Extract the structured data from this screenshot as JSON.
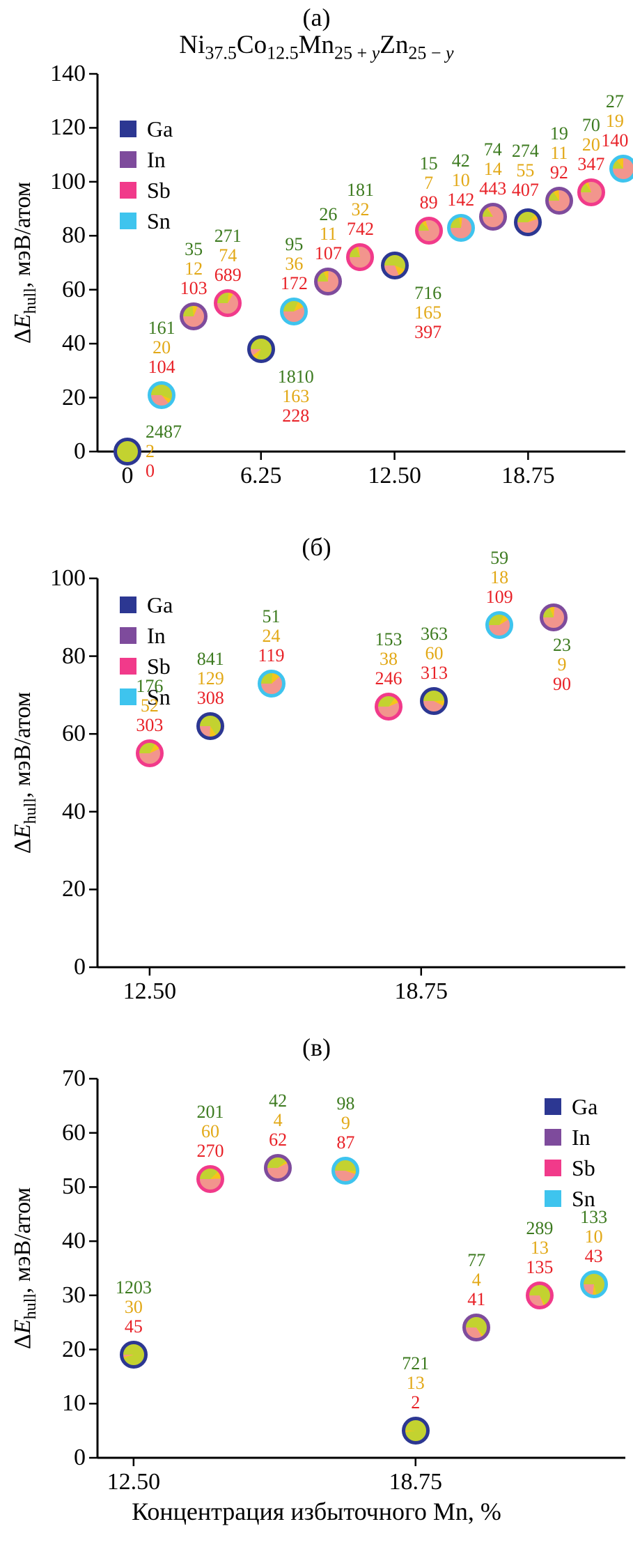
{
  "figure": {
    "xlabel": "Концентрация избыточного Mn, %",
    "ylabel": {
      "prefix": "Δ",
      "variable": "E",
      "subscript": "hull",
      "suffix": ", мэВ/атом"
    },
    "legend_entries": [
      "Ga",
      "In",
      "Sb",
      "Sn"
    ],
    "element_colors": {
      "Ga": "#2c3792",
      "In": "#7e4b9c",
      "Sb": "#f13a8a",
      "Sn": "#3ec4ee"
    },
    "pie_colors": {
      "green": "#c3d230",
      "yellow": "#f5c51b",
      "red": "#f2958d"
    },
    "annotation_colors": {
      "green": "#3c7a1f",
      "yellow": "#e2a816",
      "red": "#e82127"
    }
  },
  "chart_data": [
    {
      "type": "scatter-pie",
      "panel_label": "(а)",
      "title": "Ni37.5Co12.5Mn25+yZn25−y",
      "title_parts": [
        {
          "text": "Ni",
          "sub": "37.5"
        },
        {
          "text": "Co",
          "sub": "12.5"
        },
        {
          "text": "Mn",
          "sub": "25 + y"
        },
        {
          "text": "Zn",
          "sub": "25 − y"
        }
      ],
      "ylim": [
        0,
        140
      ],
      "yticks": [
        0,
        20,
        40,
        60,
        80,
        100,
        120,
        140
      ],
      "xlim": [
        -1.4,
        23.3
      ],
      "xticks": [
        0,
        6.25,
        12.5,
        18.75
      ],
      "xtick_labels": [
        "0",
        "6.25",
        "12.50",
        "18.75"
      ],
      "legend_pos": "top-left",
      "points": [
        {
          "x": 0,
          "y": 0,
          "element": "Ga",
          "green": 2487,
          "yellow": 2,
          "red": 0,
          "label_pos": "right"
        },
        {
          "x": 1.6,
          "y": 21,
          "element": "Sn",
          "green": 161,
          "yellow": 20,
          "red": 104,
          "label_pos": "above"
        },
        {
          "x": 3.1,
          "y": 50,
          "element": "In",
          "green": 35,
          "yellow": 12,
          "red": 103,
          "label_pos": "above"
        },
        {
          "x": 4.7,
          "y": 55,
          "element": "Sb",
          "green": 271,
          "yellow": 74,
          "red": 689,
          "label_pos": "above"
        },
        {
          "x": 6.25,
          "y": 38,
          "element": "Ga",
          "green": 1810,
          "yellow": 163,
          "red": 228,
          "label_pos": "below",
          "dx": 50
        },
        {
          "x": 7.8,
          "y": 52,
          "element": "Sn",
          "green": 95,
          "yellow": 36,
          "red": 172,
          "label_pos": "above"
        },
        {
          "x": 9.4,
          "y": 63,
          "element": "In",
          "green": 26,
          "yellow": 11,
          "red": 107,
          "label_pos": "above"
        },
        {
          "x": 10.9,
          "y": 72,
          "element": "Sb",
          "green": 181,
          "yellow": 32,
          "red": 742,
          "label_pos": "above"
        },
        {
          "x": 12.5,
          "y": 69,
          "element": "Ga",
          "green": 716,
          "yellow": 165,
          "red": 397,
          "label_pos": "below",
          "dx": 48
        },
        {
          "x": 14.1,
          "y": 82,
          "element": "Sb",
          "green": 15,
          "yellow": 7,
          "red": 89,
          "label_pos": "above"
        },
        {
          "x": 15.6,
          "y": 83,
          "element": "Sn",
          "green": 42,
          "yellow": 10,
          "red": 142,
          "label_pos": "above"
        },
        {
          "x": 17.1,
          "y": 87,
          "element": "In",
          "green": 74,
          "yellow": 14,
          "red": 443,
          "label_pos": "above"
        },
        {
          "x": 18.75,
          "y": 85,
          "element": "Ga",
          "green": 274,
          "yellow": 55,
          "red": 407,
          "label_pos": "above",
          "dx": -4,
          "dy": -6
        },
        {
          "x": 20.2,
          "y": 93,
          "element": "In",
          "green": 19,
          "yellow": 11,
          "red": 92,
          "label_pos": "above"
        },
        {
          "x": 21.7,
          "y": 96,
          "element": "Sb",
          "green": 70,
          "yellow": 20,
          "red": 347,
          "label_pos": "above"
        },
        {
          "x": 23.2,
          "y": 105,
          "element": "Sn",
          "green": 27,
          "yellow": 19,
          "red": 140,
          "label_pos": "above",
          "dx": -12
        }
      ]
    },
    {
      "type": "scatter-pie",
      "panel_label": "(б)",
      "ylim": [
        0,
        100
      ],
      "yticks": [
        0,
        20,
        40,
        60,
        80,
        100
      ],
      "xlim": [
        11.3,
        23.45
      ],
      "xticks": [
        12.5,
        18.75
      ],
      "xtick_labels": [
        "12.50",
        "18.75"
      ],
      "legend_pos": "top-left",
      "points": [
        {
          "x": 12.5,
          "y": 55,
          "element": "Sb",
          "green": 176,
          "yellow": 52,
          "red": 303,
          "label_pos": "above"
        },
        {
          "x": 13.9,
          "y": 62,
          "element": "Ga",
          "green": 841,
          "yellow": 129,
          "red": 308,
          "label_pos": "above"
        },
        {
          "x": 15.3,
          "y": 73,
          "element": "Sn",
          "green": 51,
          "yellow": 24,
          "red": 119,
          "label_pos": "above"
        },
        {
          "x": 18.0,
          "y": 67,
          "element": "Sb",
          "green": 153,
          "yellow": 38,
          "red": 246,
          "label_pos": "above"
        },
        {
          "x": 19.05,
          "y": 68.5,
          "element": "Ga",
          "green": 363,
          "yellow": 60,
          "red": 313,
          "label_pos": "above"
        },
        {
          "x": 20.55,
          "y": 88,
          "element": "Sn",
          "green": 59,
          "yellow": 18,
          "red": 109,
          "label_pos": "above"
        },
        {
          "x": 21.8,
          "y": 90,
          "element": "In",
          "green": 23,
          "yellow": 9,
          "red": 90,
          "label_pos": "below",
          "dx": 12
        }
      ]
    },
    {
      "type": "scatter-pie",
      "panel_label": "(в)",
      "ylim": [
        0,
        70
      ],
      "yticks": [
        0,
        10,
        20,
        30,
        40,
        50,
        60,
        70
      ],
      "xlim": [
        11.7,
        23.4
      ],
      "xticks": [
        12.5,
        18.75
      ],
      "xtick_labels": [
        "12.50",
        "18.75"
      ],
      "legend_pos": "top-right",
      "points": [
        {
          "x": 12.5,
          "y": 19,
          "element": "Ga",
          "green": 1203,
          "yellow": 30,
          "red": 45,
          "label_pos": "above"
        },
        {
          "x": 14.2,
          "y": 51.5,
          "element": "Sb",
          "green": 201,
          "yellow": 60,
          "red": 270,
          "label_pos": "above"
        },
        {
          "x": 15.7,
          "y": 53.5,
          "element": "In",
          "green": 42,
          "yellow": 4,
          "red": 62,
          "label_pos": "above"
        },
        {
          "x": 17.2,
          "y": 53,
          "element": "Sn",
          "green": 98,
          "yellow": 9,
          "red": 87,
          "label_pos": "above"
        },
        {
          "x": 18.75,
          "y": 5,
          "element": "Ga",
          "green": 721,
          "yellow": 13,
          "red": 2,
          "label_pos": "above"
        },
        {
          "x": 20.1,
          "y": 24,
          "element": "In",
          "green": 77,
          "yellow": 4,
          "red": 41,
          "label_pos": "above"
        },
        {
          "x": 21.5,
          "y": 30,
          "element": "Sb",
          "green": 289,
          "yellow": 13,
          "red": 135,
          "label_pos": "above"
        },
        {
          "x": 22.7,
          "y": 32,
          "element": "Sn",
          "green": 133,
          "yellow": 10,
          "red": 43,
          "label_pos": "above"
        }
      ]
    }
  ]
}
